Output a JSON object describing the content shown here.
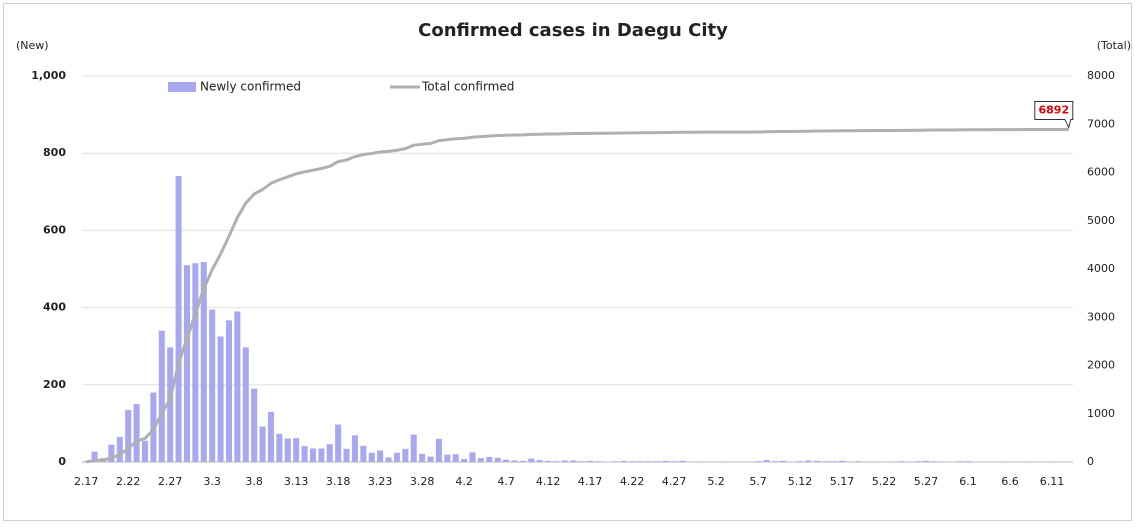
{
  "chart_data": {
    "type": "bar-line",
    "title": "Confirmed cases in Daegu City",
    "y_label": "(New)",
    "y2_label": "(Total)",
    "legend": "top",
    "grid": true,
    "categories": [
      "2.17",
      null,
      null,
      null,
      null,
      "2.22",
      null,
      null,
      null,
      null,
      "2.27",
      null,
      null,
      null,
      null,
      "3.3",
      null,
      null,
      null,
      null,
      "3.8",
      null,
      null,
      null,
      null,
      "3.13",
      null,
      null,
      null,
      null,
      "3.18",
      null,
      null,
      null,
      null,
      "3.23",
      null,
      null,
      null,
      null,
      "3.28",
      null,
      null,
      null,
      null,
      "4.2",
      null,
      null,
      null,
      null,
      "4.7",
      null,
      null,
      null,
      null,
      "4.12",
      null,
      null,
      null,
      null,
      "4.17",
      null,
      null,
      null,
      null,
      "4.22",
      null,
      null,
      null,
      null,
      "4.27",
      null,
      null,
      null,
      null,
      "5.2",
      null,
      null,
      null,
      null,
      "5.7",
      null,
      null,
      null,
      null,
      "5.12",
      null,
      null,
      null,
      null,
      "5.17",
      null,
      null,
      null,
      null,
      "5.22",
      null,
      null,
      null,
      null,
      "5.27",
      null,
      null,
      null,
      null,
      "6.1",
      null,
      null,
      null,
      null,
      "6.6",
      null,
      null,
      null,
      null,
      "6.11",
      null,
      null
    ],
    "series": [
      {
        "name": "Newly confirmed",
        "type": "bar",
        "color": "#a8a8f0",
        "axis": "y",
        "values": [
          2,
          27,
          10,
          45,
          65,
          135,
          150,
          55,
          180,
          340,
          297,
          741,
          510,
          515,
          518,
          395,
          325,
          367,
          390,
          297,
          190,
          92,
          130,
          73,
          61,
          62,
          41,
          35,
          35,
          46,
          97,
          34,
          69,
          42,
          24,
          30,
          12,
          24,
          34,
          71,
          21,
          14,
          60,
          19,
          20,
          8,
          25,
          10,
          13,
          11,
          6,
          4,
          3,
          9,
          5,
          3,
          2,
          4,
          4,
          2,
          3,
          2,
          0,
          2,
          3,
          2,
          2,
          2,
          2,
          3,
          2,
          3,
          0,
          1,
          0,
          0,
          1,
          0,
          0,
          0,
          2,
          5,
          2,
          3,
          1,
          2,
          4,
          3,
          2,
          2,
          3,
          0,
          2,
          1,
          1,
          0,
          1,
          2,
          1,
          2,
          3,
          2,
          1,
          0,
          2,
          2,
          1,
          0,
          1,
          0,
          1,
          0,
          1,
          0,
          0,
          1,
          0,
          1
        ]
      },
      {
        "name": "Total confirmed",
        "type": "line",
        "color": "#b0b0b0",
        "axis": "y2",
        "values": [
          2,
          29,
          39,
          84,
          149,
          284,
          434,
          489,
          669,
          1009,
          1306,
          2047,
          2557,
          3072,
          3590,
          3985,
          4310,
          4677,
          5067,
          5364,
          5554,
          5646,
          5776,
          5849,
          5910,
          5972,
          6013,
          6048,
          6083,
          6129,
          6226,
          6260,
          6329,
          6371,
          6395,
          6425,
          6437,
          6461,
          6495,
          6566,
          6587,
          6601,
          6661,
          6680,
          6700,
          6708,
          6733,
          6743,
          6756,
          6767,
          6773,
          6777,
          6780,
          6789,
          6794,
          6797,
          6799,
          6803,
          6807,
          6809,
          6812,
          6814,
          6814,
          6816,
          6819,
          6821,
          6823,
          6825,
          6827,
          6830,
          6832,
          6835,
          6835,
          6836,
          6836,
          6836,
          6837,
          6837,
          6837,
          6837,
          6839,
          6844,
          6846,
          6849,
          6850,
          6852,
          6856,
          6859,
          6861,
          6863,
          6866,
          6866,
          6868,
          6869,
          6870,
          6870,
          6871,
          6873,
          6874,
          6876,
          6879,
          6881,
          6882,
          6882,
          6884,
          6886,
          6887,
          6887,
          6888,
          6888,
          6889,
          6889,
          6890,
          6890,
          6890,
          6891,
          6891,
          6892
        ]
      }
    ],
    "ylim": [
      0,
      1000
    ],
    "yticks": [
      0,
      200,
      400,
      600,
      800,
      {
        "value": 1000,
        "label": "1,000"
      }
    ],
    "y2lim": [
      0,
      8000
    ],
    "y2ticks": [
      0,
      1000,
      2000,
      3000,
      4000,
      5000,
      6000,
      7000,
      8000
    ]
  }
}
